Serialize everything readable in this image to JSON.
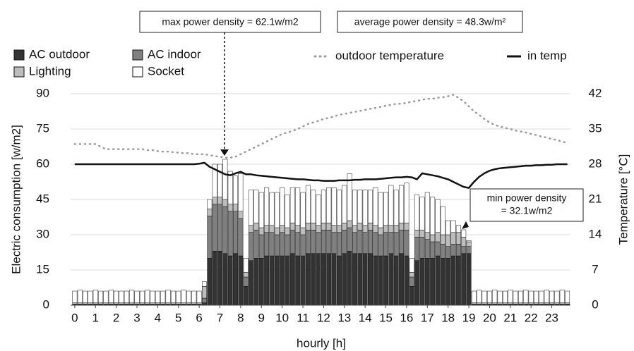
{
  "chart_data": {
    "type": "bar",
    "xlabel": "hourly [h]",
    "ylabel": "Electric consumption [w/m2]",
    "y2label": "Temperature [°C]",
    "annotations": [
      {
        "text": [
          "max power density = 62.1w/m2"
        ]
      },
      {
        "text": [
          "average power density = 48.3w/m²"
        ]
      },
      {
        "text": [
          "min power density",
          "= 32.1w/m2"
        ]
      }
    ],
    "x": [
      0,
      0.25,
      0.5,
      0.75,
      1,
      1.25,
      1.5,
      1.75,
      2,
      2.25,
      2.5,
      2.75,
      3,
      3.25,
      3.5,
      3.75,
      4,
      4.25,
      4.5,
      4.75,
      5,
      5.25,
      5.5,
      5.75,
      6,
      6.25,
      6.5,
      6.75,
      7,
      7.25,
      7.5,
      7.75,
      8,
      8.25,
      8.5,
      8.75,
      9,
      9.25,
      9.5,
      9.75,
      10,
      10.25,
      10.5,
      10.75,
      11,
      11.25,
      11.5,
      11.75,
      12,
      12.25,
      12.5,
      12.75,
      13,
      13.25,
      13.5,
      13.75,
      14,
      14.25,
      14.5,
      14.75,
      15,
      15.25,
      15.5,
      15.75,
      16,
      16.25,
      16.5,
      16.75,
      17,
      17.25,
      17.5,
      17.75,
      18,
      18.25,
      18.5,
      18.75,
      19,
      19.25,
      19.5,
      19.75,
      20,
      20.25,
      20.5,
      20.75,
      21,
      21.25,
      21.5,
      21.75,
      22,
      22.25,
      22.5,
      22.75,
      23,
      23.25,
      23.5,
      23.75
    ],
    "xlim": [
      -0.2,
      23.9
    ],
    "xticks": [
      0,
      1,
      2,
      3,
      4,
      5,
      6,
      7,
      8,
      9,
      10,
      11,
      12,
      13,
      14,
      15,
      16,
      17,
      18,
      19,
      20,
      21,
      22,
      23
    ],
    "ylim": [
      0,
      90
    ],
    "yticks": [
      0,
      15,
      30,
      45,
      60,
      75,
      90
    ],
    "y2lim": [
      0,
      42
    ],
    "y2ticks": [
      0,
      7,
      14,
      21,
      28,
      35,
      42
    ],
    "grid": true,
    "series": [
      {
        "name": "AC outdoor",
        "color": "#333333",
        "values": [
          0.5,
          0.5,
          0.5,
          0.5,
          0.5,
          0.5,
          0.5,
          0.5,
          0.5,
          0.5,
          0.5,
          0.5,
          0.5,
          0.5,
          0.5,
          0.5,
          0.5,
          0.5,
          0.5,
          0.5,
          0.5,
          0.5,
          0.5,
          0.5,
          0.5,
          1,
          20,
          23,
          23,
          22,
          21,
          22,
          21,
          8,
          19,
          20,
          20,
          21,
          21,
          21,
          21,
          21,
          22,
          21,
          21,
          22,
          22,
          22,
          22,
          22,
          22,
          21,
          22,
          23,
          22,
          22,
          22,
          22,
          21,
          21,
          21,
          22,
          21,
          22,
          21,
          8,
          19,
          20,
          20,
          20,
          21,
          20,
          20,
          21,
          21,
          22,
          22,
          0.5,
          0.5,
          0.5,
          0.5,
          0.5,
          0.5,
          0.5,
          0.5,
          0.5,
          0.5,
          0.5,
          0.5,
          0.5,
          0.5,
          0.5,
          0.5,
          0.5,
          0.5,
          0.5
        ]
      },
      {
        "name": "AC indoor",
        "color": "#808080",
        "values": [
          0,
          0,
          0,
          0,
          0,
          0,
          0,
          0,
          0,
          0,
          0,
          0,
          0,
          0,
          0,
          0,
          0,
          0,
          0,
          0,
          0,
          0,
          0,
          0,
          0,
          2,
          18,
          20,
          20,
          20,
          19,
          18,
          16,
          4,
          12,
          12,
          10,
          10,
          10,
          9,
          10,
          9,
          10,
          10,
          9,
          10,
          10,
          9,
          10,
          10,
          9,
          10,
          10,
          10,
          9,
          10,
          9,
          10,
          10,
          9,
          10,
          9,
          10,
          10,
          11,
          4,
          10,
          9,
          8,
          7,
          6,
          6,
          5,
          5,
          5,
          3,
          3,
          0,
          0,
          0,
          0,
          0,
          0,
          0,
          0,
          0,
          0,
          0,
          0,
          0,
          0,
          0,
          0,
          0,
          0,
          0
        ]
      },
      {
        "name": "Lighting",
        "color": "#bdbdbd",
        "values": [
          0.5,
          0.5,
          0.5,
          0.5,
          0.5,
          0.5,
          0.5,
          0.5,
          0.5,
          0.5,
          0.5,
          0.5,
          0.5,
          0.5,
          0.5,
          0.5,
          0.5,
          0.5,
          0.5,
          0.5,
          0.5,
          0.5,
          0.5,
          0.5,
          0.5,
          5,
          3,
          3,
          3,
          3,
          3,
          3,
          3,
          2,
          3,
          3,
          3,
          3,
          3,
          3,
          3,
          3,
          3,
          3,
          3,
          3,
          3,
          3,
          3,
          3,
          3,
          3,
          3,
          3,
          3,
          3,
          3,
          3,
          3,
          3,
          3,
          3,
          3,
          3,
          3,
          2,
          3,
          3,
          3,
          3,
          4,
          4,
          5,
          5,
          5,
          4,
          2,
          0.5,
          0.5,
          0.5,
          0.5,
          0.5,
          0.5,
          0.5,
          0.5,
          0.5,
          0.5,
          0.5,
          0.5,
          0.5,
          0.5,
          0.5,
          0.5,
          0.5,
          0.5,
          0.5
        ]
      },
      {
        "name": "Socket",
        "color": "#ffffff",
        "values": [
          5,
          5.5,
          5,
          5,
          5.5,
          5,
          5,
          5.5,
          5,
          5,
          5,
          5.5,
          5,
          5,
          5.5,
          5,
          5,
          5,
          5.5,
          5,
          5,
          5.5,
          5,
          5,
          5,
          2,
          4,
          14,
          14,
          17.1,
          14,
          12,
          16,
          6,
          15,
          14,
          15,
          16,
          14,
          15,
          16,
          14,
          15,
          16,
          15,
          16,
          14,
          13,
          14,
          15,
          16,
          15,
          16,
          20,
          15,
          14,
          15,
          14,
          16,
          15,
          14,
          17,
          15,
          16,
          17,
          6,
          15,
          14,
          17,
          16,
          14,
          12,
          6,
          5,
          3,
          3.1,
          0.5,
          5,
          5.5,
          5,
          5,
          5.5,
          5,
          5,
          5.5,
          5,
          5,
          5.5,
          5,
          5,
          5,
          5.5,
          5,
          5,
          5.5,
          5
        ]
      },
      {
        "name": "outdoor temperature",
        "color": "#999999",
        "type": "line",
        "style": "dotted",
        "axis": "y2",
        "values": [
          32,
          32,
          32,
          32,
          32,
          31.5,
          31,
          31,
          31,
          31,
          31,
          31,
          31,
          31,
          30.8,
          30.8,
          30.6,
          30.5,
          30.5,
          30.4,
          30.3,
          30.2,
          30.2,
          30,
          30,
          30,
          29.8,
          29.6,
          29.5,
          29.3,
          29.3,
          29.5,
          30,
          30.5,
          31,
          31.5,
          32,
          32.5,
          33,
          33.5,
          34,
          34.3,
          34.6,
          35,
          35.5,
          36,
          36.3,
          36.6,
          37,
          37.2,
          37.5,
          37.8,
          38,
          38.2,
          38.4,
          38.6,
          38.8,
          39,
          39.2,
          39.4,
          39.6,
          39.8,
          40,
          40,
          40.2,
          40.4,
          40.6,
          40.8,
          41,
          41,
          41.2,
          41.3,
          41.5,
          41.8,
          41.2,
          40.5,
          39.5,
          38.5,
          37.8,
          37,
          36.3,
          35.8,
          35.5,
          35.2,
          35,
          34.7,
          34.5,
          34.3,
          34,
          33.8,
          33.5,
          33.3,
          33,
          32.8,
          32.5,
          32.2
        ]
      },
      {
        "name": "in temp",
        "color": "#111111",
        "type": "line",
        "style": "solid",
        "axis": "y2",
        "values": [
          28,
          28,
          28,
          28,
          28,
          28,
          28,
          28,
          28,
          28,
          28,
          28,
          28,
          28,
          28,
          28,
          28,
          28,
          28,
          28,
          28,
          28,
          28,
          28,
          28.1,
          28.3,
          27.5,
          27,
          26.5,
          26,
          25.8,
          26.2,
          26.5,
          26,
          26,
          25.8,
          25.7,
          25.6,
          25.5,
          25.4,
          25.3,
          25.2,
          25.1,
          25,
          25,
          24.9,
          24.8,
          24.8,
          24.7,
          24.7,
          24.7,
          24.8,
          24.8,
          24.8,
          24.9,
          24.9,
          25,
          25,
          25,
          25.1,
          25.2,
          25.3,
          25.4,
          25.4,
          25.5,
          25.4,
          25,
          26.2,
          26,
          25.8,
          25.6,
          25.3,
          25,
          24.5,
          24,
          23.5,
          23.3,
          24.5,
          25.5,
          26.2,
          26.7,
          27,
          27.2,
          27.3,
          27.4,
          27.5,
          27.6,
          27.7,
          27.7,
          27.8,
          27.8,
          27.9,
          27.9,
          28,
          28,
          28
        ]
      }
    ]
  }
}
